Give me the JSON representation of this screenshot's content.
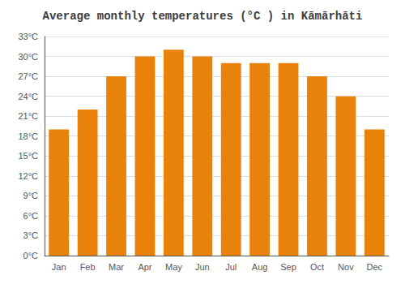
{
  "chart_data": {
    "type": "bar",
    "title": "Average monthly temperatures (°C ) in Kāmārhāti",
    "categories": [
      "Jan",
      "Feb",
      "Mar",
      "Apr",
      "May",
      "Jun",
      "Jul",
      "Aug",
      "Sep",
      "Oct",
      "Nov",
      "Dec"
    ],
    "values": [
      19,
      22,
      27,
      30,
      31,
      30,
      29,
      29,
      29,
      27,
      24,
      19
    ],
    "color": "#e8820a",
    "ylim": [
      0,
      33
    ],
    "yticks": [
      {
        "value": 0,
        "label": "0°C"
      },
      {
        "value": 3,
        "label": "3°C"
      },
      {
        "value": 6,
        "label": "6°C"
      },
      {
        "value": 9,
        "label": "9°C"
      },
      {
        "value": 12,
        "label": "12°C"
      },
      {
        "value": 15,
        "label": "15°C"
      },
      {
        "value": 18,
        "label": "18°C"
      },
      {
        "value": 21,
        "label": "21°C"
      },
      {
        "value": 24,
        "label": "24°C"
      },
      {
        "value": 27,
        "label": "27°C"
      },
      {
        "value": 30,
        "label": "30°C"
      },
      {
        "value": 33,
        "label": "33°C"
      }
    ],
    "grid": true
  }
}
